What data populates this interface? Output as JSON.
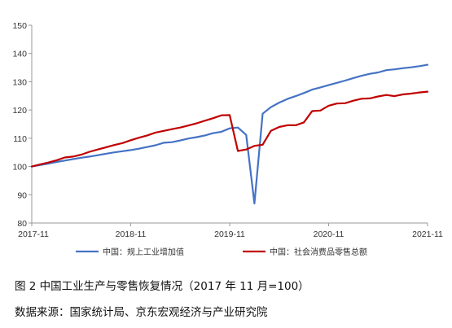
{
  "caption": "图 2 中国工业生产与零售恢复情况（2017 年 11 月=100）",
  "source": "数据来源：国家统计局、京东宏观经济与产业研究院",
  "chart_data": {
    "type": "line",
    "title": "",
    "xlabel": "",
    "ylabel": "",
    "ylim": [
      80,
      150
    ],
    "yticks": [
      80,
      90,
      100,
      110,
      120,
      130,
      140,
      150
    ],
    "xlim": [
      "2017-11",
      "2021-11"
    ],
    "xticks": [
      "2017-11",
      "2018-11",
      "2019-11",
      "2020-11",
      "2021-11"
    ],
    "grid": false,
    "legend_position": "bottom",
    "colors": {
      "axis": "#999999",
      "industry": "#4472C4",
      "retail": "#C00000"
    },
    "x": [
      "2017-11",
      "2017-12",
      "2018-01",
      "2018-02",
      "2018-03",
      "2018-04",
      "2018-05",
      "2018-06",
      "2018-07",
      "2018-08",
      "2018-09",
      "2018-10",
      "2018-11",
      "2018-12",
      "2019-01",
      "2019-02",
      "2019-03",
      "2019-04",
      "2019-05",
      "2019-06",
      "2019-07",
      "2019-08",
      "2019-09",
      "2019-10",
      "2019-11",
      "2019-12",
      "2020-01",
      "2020-02",
      "2020-03",
      "2020-04",
      "2020-05",
      "2020-06",
      "2020-07",
      "2020-08",
      "2020-09",
      "2020-10",
      "2020-11",
      "2020-12",
      "2021-01",
      "2021-02",
      "2021-03",
      "2021-04",
      "2021-05",
      "2021-06",
      "2021-07",
      "2021-08",
      "2021-09",
      "2021-10",
      "2021-11"
    ],
    "series": [
      {
        "name": "中国：规上工业增加值",
        "values": [
          100.0,
          100.5,
          101.0,
          101.6,
          102.1,
          102.6,
          103.1,
          103.5,
          104.0,
          104.5,
          105.0,
          105.4,
          105.8,
          106.3,
          106.9,
          107.5,
          108.4,
          108.6,
          109.2,
          109.9,
          110.4,
          111.0,
          111.8,
          112.3,
          113.5,
          113.8,
          111.2,
          86.9,
          118.7,
          121.0,
          122.6,
          123.9,
          124.9,
          126.0,
          127.2,
          128.0,
          128.8,
          129.6,
          130.4,
          131.3,
          132.1,
          132.8,
          133.3,
          134.1,
          134.4,
          134.8,
          135.1,
          135.5,
          136.0
        ]
      },
      {
        "name": "中国：社会消费品零售总额",
        "values": [
          100.0,
          100.7,
          101.4,
          102.2,
          103.2,
          103.5,
          104.2,
          105.2,
          106.0,
          106.8,
          107.6,
          108.3,
          109.3,
          110.2,
          111.0,
          112.0,
          112.6,
          113.2,
          113.8,
          114.5,
          115.3,
          116.2,
          117.1,
          118.1,
          118.2,
          105.5,
          106.0,
          107.3,
          107.7,
          112.6,
          114.0,
          114.6,
          114.6,
          115.6,
          119.6,
          119.8,
          121.5,
          122.3,
          122.4,
          123.3,
          124.0,
          124.1,
          124.8,
          125.3,
          124.9,
          125.5,
          125.8,
          126.2,
          126.5
        ]
      }
    ]
  }
}
